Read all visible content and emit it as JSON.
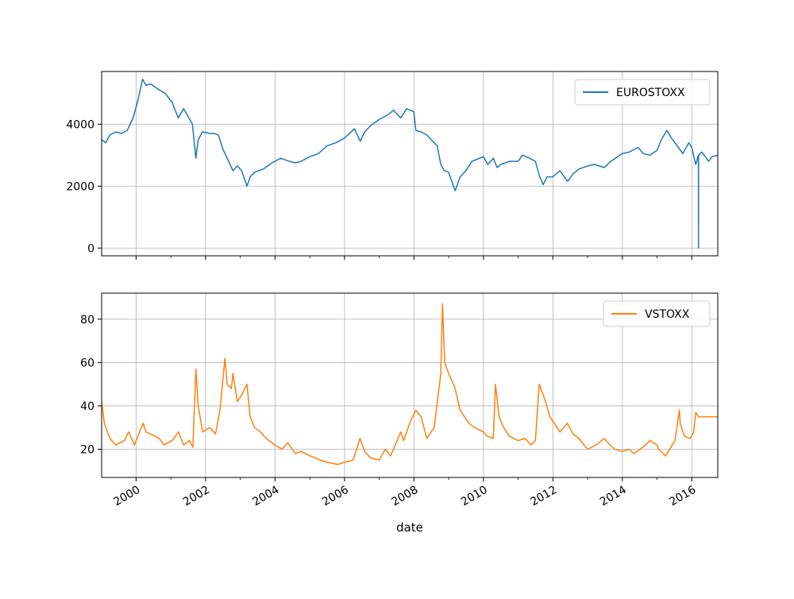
{
  "chart_data": [
    {
      "type": "line",
      "xlim": [
        "1999-01-04",
        "2016-09-30"
      ],
      "ylim": [
        -250,
        5700
      ],
      "yticks": [
        0,
        2000,
        4000
      ],
      "xticks": [
        "2000-01-01",
        "2002-01-01",
        "2004-01-01",
        "2006-01-01",
        "2008-01-01",
        "2010-01-01",
        "2012-01-01",
        "2014-01-01",
        "2016-01-01"
      ],
      "grid": true,
      "legend": "top-right",
      "color": "#1f77b4",
      "series": [
        {
          "name": "EUROSTOXX",
          "x": [
            "1999-01-04",
            "1999-02-15",
            "1999-04-01",
            "1999-06-01",
            "1999-08-01",
            "1999-10-01",
            "1999-12-01",
            "2000-01-15",
            "2000-03-10",
            "2000-04-15",
            "2000-06-01",
            "2000-09-01",
            "2000-11-01",
            "2001-01-15",
            "2001-03-20",
            "2001-05-15",
            "2001-07-01",
            "2001-08-15",
            "2001-09-21",
            "2001-10-15",
            "2001-12-01",
            "2002-02-15",
            "2002-04-01",
            "2002-05-15",
            "2002-07-01",
            "2002-08-01",
            "2002-09-15",
            "2002-10-15",
            "2002-12-01",
            "2003-01-15",
            "2003-03-12",
            "2003-04-15",
            "2003-06-01",
            "2003-09-01",
            "2003-12-01",
            "2004-03-01",
            "2004-06-01",
            "2004-08-01",
            "2004-10-01",
            "2004-12-31",
            "2005-04-01",
            "2005-07-01",
            "2005-10-01",
            "2005-12-31",
            "2006-04-15",
            "2006-06-15",
            "2006-08-01",
            "2006-10-01",
            "2006-12-31",
            "2007-04-01",
            "2007-06-01",
            "2007-08-15",
            "2007-10-15",
            "2007-12-31",
            "2008-01-22",
            "2008-03-15",
            "2008-05-15",
            "2008-07-15",
            "2008-09-01",
            "2008-10-10",
            "2008-11-15",
            "2008-12-31",
            "2009-03-09",
            "2009-05-01",
            "2009-07-01",
            "2009-09-01",
            "2009-12-31",
            "2010-02-15",
            "2010-04-15",
            "2010-05-25",
            "2010-07-01",
            "2010-10-01",
            "2010-12-31",
            "2011-02-15",
            "2011-05-01",
            "2011-07-01",
            "2011-08-15",
            "2011-09-22",
            "2011-11-01",
            "2011-12-31",
            "2012-03-15",
            "2012-06-04",
            "2012-08-01",
            "2012-10-01",
            "2012-12-31",
            "2013-03-15",
            "2013-06-24",
            "2013-09-01",
            "2013-12-31",
            "2014-03-15",
            "2014-06-15",
            "2014-08-07",
            "2014-10-16",
            "2014-12-31",
            "2015-02-15",
            "2015-04-13",
            "2015-06-01",
            "2015-08-24",
            "2015-09-29",
            "2015-11-30",
            "2015-12-31",
            "2016-02-11",
            "2016-03-10",
            "2016-03-11",
            "2016-03-12",
            "2016-03-16",
            "2016-04-15",
            "2016-06-27",
            "2016-08-01",
            "2016-09-30"
          ],
          "y": [
            3500,
            3400,
            3650,
            3750,
            3700,
            3800,
            4200,
            4700,
            5450,
            5250,
            5300,
            5100,
            5000,
            4700,
            4200,
            4500,
            4250,
            4000,
            2900,
            3500,
            3750,
            3700,
            3700,
            3650,
            3200,
            3000,
            2700,
            2500,
            2650,
            2500,
            2000,
            2300,
            2450,
            2550,
            2750,
            2900,
            2800,
            2750,
            2800,
            2950,
            3050,
            3300,
            3400,
            3550,
            3850,
            3450,
            3750,
            3950,
            4150,
            4300,
            4450,
            4200,
            4500,
            4400,
            3800,
            3750,
            3650,
            3450,
            3300,
            2700,
            2500,
            2450,
            1850,
            2300,
            2500,
            2800,
            2950,
            2700,
            2900,
            2600,
            2700,
            2800,
            2800,
            3000,
            2900,
            2800,
            2300,
            2050,
            2300,
            2300,
            2500,
            2150,
            2400,
            2550,
            2650,
            2700,
            2600,
            2800,
            3050,
            3100,
            3250,
            3050,
            3000,
            3150,
            3500,
            3800,
            3550,
            3200,
            3050,
            3400,
            3250,
            2700,
            3000,
            0,
            3000,
            3000,
            3100,
            2800,
            2950,
            3000
          ]
        }
      ]
    },
    {
      "type": "line",
      "xlim": [
        "1999-01-04",
        "2016-09-30"
      ],
      "ylim": [
        7,
        92
      ],
      "yticks": [
        20,
        40,
        60,
        80
      ],
      "xticks": [
        "2000-01-01",
        "2002-01-01",
        "2004-01-01",
        "2006-01-01",
        "2008-01-01",
        "2010-01-01",
        "2012-01-01",
        "2014-01-01",
        "2016-01-01"
      ],
      "xtick_labels": [
        "2000",
        "2002",
        "2004",
        "2006",
        "2008",
        "2010",
        "2012",
        "2014",
        "2016"
      ],
      "xlabel": "date",
      "grid": true,
      "legend": "top-right",
      "color": "#ff7f0e",
      "series": [
        {
          "name": "VSTOXX",
          "x": [
            "1999-01-04",
            "1999-02-01",
            "1999-04-01",
            "1999-06-01",
            "1999-09-01",
            "1999-10-15",
            "1999-12-15",
            "2000-03-15",
            "2000-04-15",
            "2000-06-01",
            "2000-09-01",
            "2000-10-20",
            "2001-01-15",
            "2001-03-22",
            "2001-05-15",
            "2001-07-15",
            "2001-08-20",
            "2001-09-21",
            "2001-10-15",
            "2001-12-01",
            "2002-02-15",
            "2002-04-15",
            "2002-06-01",
            "2002-07-24",
            "2002-08-15",
            "2002-09-30",
            "2002-10-15",
            "2002-12-01",
            "2003-01-15",
            "2003-03-12",
            "2003-04-15",
            "2003-06-01",
            "2003-08-01",
            "2003-10-01",
            "2003-12-31",
            "2004-03-15",
            "2004-05-15",
            "2004-08-01",
            "2004-10-01",
            "2004-12-31",
            "2005-03-01",
            "2005-04-20",
            "2005-07-01",
            "2005-10-20",
            "2005-12-31",
            "2006-04-01",
            "2006-06-13",
            "2006-08-01",
            "2006-10-01",
            "2006-12-31",
            "2007-03-05",
            "2007-05-01",
            "2007-08-16",
            "2007-09-15",
            "2007-11-26",
            "2008-01-22",
            "2008-03-17",
            "2008-05-15",
            "2008-08-01",
            "2008-10-10",
            "2008-10-27",
            "2008-11-20",
            "2008-12-31",
            "2009-03-09",
            "2009-05-01",
            "2009-08-01",
            "2009-10-01",
            "2009-12-31",
            "2010-02-10",
            "2010-04-15",
            "2010-05-07",
            "2010-06-15",
            "2010-08-01",
            "2010-10-01",
            "2010-12-31",
            "2011-03-15",
            "2011-05-15",
            "2011-07-01",
            "2011-08-10",
            "2011-09-22",
            "2011-10-15",
            "2011-12-01",
            "2012-03-15",
            "2012-06-01",
            "2012-08-01",
            "2012-10-01",
            "2012-12-31",
            "2013-04-01",
            "2013-06-24",
            "2013-08-01",
            "2013-10-15",
            "2013-12-31",
            "2014-03-15",
            "2014-05-01",
            "2014-08-07",
            "2014-10-16",
            "2014-12-31",
            "2015-01-15",
            "2015-04-01",
            "2015-07-07",
            "2015-08-24",
            "2015-09-01",
            "2015-10-15",
            "2015-12-15",
            "2016-01-20",
            "2016-02-11",
            "2016-03-11",
            "2016-09-30"
          ],
          "y": [
            42,
            32,
            25,
            22,
            24,
            28,
            22,
            32,
            28,
            27,
            25,
            22,
            24,
            28,
            22,
            24,
            21,
            57,
            40,
            28,
            30,
            27,
            38,
            62,
            50,
            48,
            55,
            42,
            45,
            50,
            35,
            30,
            28,
            25,
            22,
            20,
            23,
            18,
            19,
            17,
            16,
            15,
            14,
            13,
            14,
            15,
            25,
            19,
            16,
            15,
            20,
            17,
            28,
            24,
            33,
            38,
            35,
            25,
            30,
            55,
            87,
            60,
            55,
            48,
            38,
            32,
            30,
            28,
            26,
            25,
            50,
            35,
            30,
            26,
            24,
            25,
            22,
            24,
            50,
            45,
            42,
            35,
            28,
            32,
            27,
            25,
            20,
            22,
            25,
            23,
            20,
            19,
            20,
            18,
            21,
            24,
            22,
            20,
            17,
            24,
            38,
            32,
            26,
            25,
            28,
            37,
            35,
            35
          ]
        }
      ]
    }
  ]
}
